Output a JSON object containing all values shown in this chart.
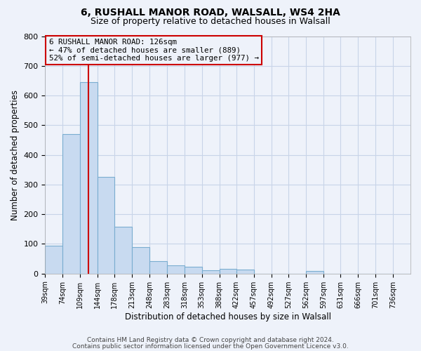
{
  "title": "6, RUSHALL MANOR ROAD, WALSALL, WS4 2HA",
  "subtitle": "Size of property relative to detached houses in Walsall",
  "xlabel": "Distribution of detached houses by size in Walsall",
  "ylabel": "Number of detached properties",
  "bin_labels": [
    "39sqm",
    "74sqm",
    "109sqm",
    "144sqm",
    "178sqm",
    "213sqm",
    "248sqm",
    "283sqm",
    "318sqm",
    "353sqm",
    "388sqm",
    "422sqm",
    "457sqm",
    "492sqm",
    "527sqm",
    "562sqm",
    "597sqm",
    "631sqm",
    "666sqm",
    "701sqm",
    "736sqm"
  ],
  "bar_values": [
    95,
    470,
    645,
    325,
    158,
    90,
    42,
    28,
    22,
    12,
    15,
    13,
    0,
    0,
    0,
    8,
    0,
    0,
    0,
    0,
    0
  ],
  "bar_color": "#c8daf0",
  "bar_edge_color": "#7aadd0",
  "ylim": [
    0,
    800
  ],
  "yticks": [
    0,
    100,
    200,
    300,
    400,
    500,
    600,
    700,
    800
  ],
  "vline_x": 126,
  "vline_color": "#cc0000",
  "annotation_line1": "6 RUSHALL MANOR ROAD: 126sqm",
  "annotation_line2": "← 47% of detached houses are smaller (889)",
  "annotation_line3": "52% of semi-detached houses are larger (977) →",
  "annotation_box_edge": "#cc0000",
  "footer1": "Contains HM Land Registry data © Crown copyright and database right 2024.",
  "footer2": "Contains public sector information licensed under the Open Government Licence v3.0.",
  "bg_color": "#eef2fa",
  "grid_color": "#c8d4e8",
  "bin_edges": [
    39,
    74,
    109,
    144,
    178,
    213,
    248,
    283,
    318,
    353,
    388,
    422,
    457,
    492,
    527,
    562,
    597,
    631,
    666,
    701,
    736,
    771
  ]
}
